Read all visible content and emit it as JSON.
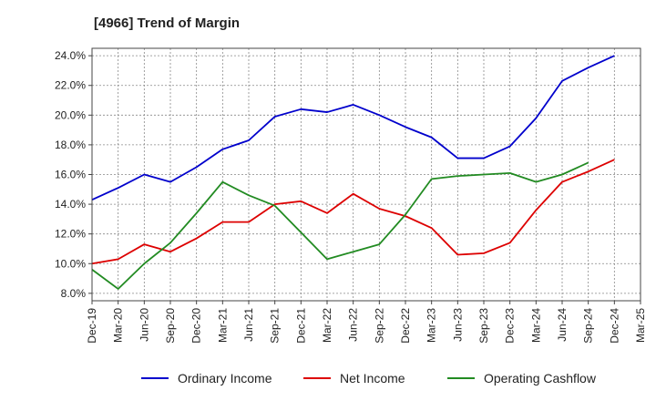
{
  "chart_data": {
    "type": "line",
    "title": "[4966]  Trend of Margin",
    "xlabel": "",
    "ylabel": "",
    "categories": [
      "Dec-19",
      "Mar-20",
      "Jun-20",
      "Sep-20",
      "Dec-20",
      "Mar-21",
      "Jun-21",
      "Sep-21",
      "Dec-21",
      "Mar-22",
      "Jun-22",
      "Sep-22",
      "Dec-22",
      "Mar-23",
      "Jun-23",
      "Sep-23",
      "Dec-23",
      "Mar-24",
      "Jun-24",
      "Sep-24",
      "Dec-24",
      "Mar-25"
    ],
    "ylim": [
      7.5,
      24.5
    ],
    "yticks": [
      8.0,
      10.0,
      12.0,
      14.0,
      16.0,
      18.0,
      20.0,
      22.0,
      24.0
    ],
    "ytick_labels": [
      "8.0%",
      "10.0%",
      "12.0%",
      "14.0%",
      "16.0%",
      "18.0%",
      "20.0%",
      "22.0%",
      "24.0%"
    ],
    "grid": true,
    "legend_position": "bottom",
    "series": [
      {
        "name": "Ordinary Income",
        "color": "#0000cc",
        "values": [
          14.3,
          15.1,
          16.0,
          15.5,
          16.5,
          17.7,
          18.3,
          19.9,
          20.4,
          20.2,
          20.7,
          20.0,
          19.2,
          18.5,
          17.1,
          17.1,
          17.9,
          19.8,
          22.3,
          23.2,
          24.0,
          null
        ]
      },
      {
        "name": "Net Income",
        "color": "#dd0000",
        "values": [
          10.0,
          10.3,
          11.3,
          10.8,
          11.7,
          12.8,
          12.8,
          14.0,
          14.2,
          13.4,
          14.7,
          13.7,
          13.2,
          12.4,
          10.6,
          10.7,
          11.4,
          13.6,
          15.5,
          16.2,
          17.0,
          null
        ]
      },
      {
        "name": "Operating Cashflow",
        "color": "#228b22",
        "values": [
          9.6,
          8.3,
          10.0,
          11.4,
          13.4,
          15.5,
          14.6,
          13.9,
          12.1,
          10.3,
          10.8,
          11.3,
          13.3,
          15.7,
          15.9,
          16.0,
          16.1,
          15.5,
          16.0,
          16.8,
          null,
          null
        ]
      }
    ]
  }
}
